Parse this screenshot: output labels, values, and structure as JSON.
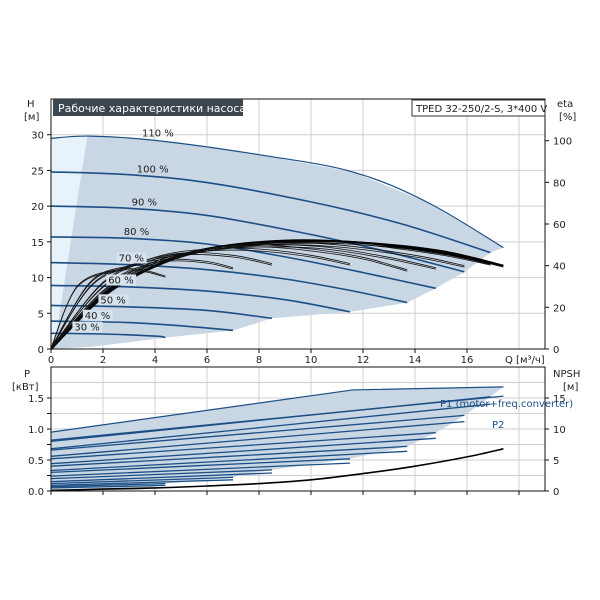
{
  "chart_data": [
    {
      "type": "line",
      "title": "Рабочие характеристики насоса",
      "model": "TPED 32-250/2-S, 3*400 V",
      "ylabel_left": [
        "H",
        "[м]"
      ],
      "ylabel_right": [
        "eta",
        "[%]"
      ],
      "xlabel": "Q [м³/ч]",
      "xlim": [
        0,
        19
      ],
      "ylim_left": [
        0,
        35
      ],
      "ylim_right": [
        0,
        120
      ],
      "x_ticks": [
        "0",
        "2",
        "4",
        "6",
        "8",
        "10",
        "12",
        "14",
        "16"
      ],
      "y_ticks_left": [
        "0",
        "5",
        "10",
        "15",
        "20",
        "25",
        "30"
      ],
      "y_ticks_right": [
        "0",
        "20",
        "40",
        "60",
        "80",
        "100"
      ],
      "head_series": [
        {
          "name": "110 %",
          "q": [
            0,
            1.5,
            4,
            8,
            11.6,
            14.5,
            17.4
          ],
          "h": [
            29.5,
            29.8,
            29.2,
            27.2,
            24.8,
            20.5,
            14.2
          ]
        },
        {
          "name": "100 %",
          "q": [
            0,
            3,
            6,
            10,
            13.5,
            16.9
          ],
          "h": [
            24.8,
            24.4,
            23.3,
            20.6,
            17.5,
            13.5
          ]
        },
        {
          "name": "90 %",
          "q": [
            0,
            3,
            6,
            9.5,
            12.5,
            15.9
          ],
          "h": [
            20,
            19.7,
            18.7,
            16.4,
            14,
            10.8
          ]
        },
        {
          "name": "80 %",
          "q": [
            0,
            3,
            6,
            9,
            12,
            14.8
          ],
          "h": [
            15.7,
            15.5,
            14.7,
            12.9,
            10.7,
            8.5
          ]
        },
        {
          "name": "70 %",
          "q": [
            0,
            3,
            6,
            9,
            11.5,
            13.7
          ],
          "h": [
            12.1,
            11.8,
            11.1,
            9.8,
            8.2,
            6.5
          ]
        },
        {
          "name": "60 %",
          "q": [
            0,
            3,
            6,
            9,
            11.5
          ],
          "h": [
            8.9,
            8.7,
            8.1,
            6.9,
            5.2
          ]
        },
        {
          "name": "50 %",
          "q": [
            0,
            3,
            6,
            8.5
          ],
          "h": [
            6.1,
            5.9,
            5.4,
            4.3
          ]
        },
        {
          "name": "40 %",
          "q": [
            0,
            3,
            5.5,
            7
          ],
          "h": [
            3.9,
            3.7,
            3.1,
            2.6
          ]
        },
        {
          "name": "30 %",
          "q": [
            0,
            2,
            4,
            4.4
          ],
          "h": [
            2.2,
            2.1,
            1.8,
            1.6
          ]
        }
      ],
      "eta_series": [
        {
          "name": "eta 110 %",
          "q": [
            0,
            2,
            4,
            6,
            9,
            12,
            15,
            17.4
          ],
          "eta": [
            0,
            25,
            40,
            48,
            52,
            51,
            47,
            40
          ]
        },
        {
          "name": "eta 100 %",
          "q": [
            0,
            2,
            4,
            6,
            9,
            12,
            15,
            16.9
          ],
          "eta": [
            0,
            26,
            40,
            48,
            51.5,
            51,
            46,
            41
          ]
        },
        {
          "name": "eta 90 %",
          "q": [
            0,
            2,
            4,
            6,
            8.5,
            11,
            14,
            15.9
          ],
          "eta": [
            0,
            27,
            41,
            48,
            51,
            50,
            45,
            40
          ]
        },
        {
          "name": "eta 80 %",
          "q": [
            0,
            2,
            4,
            6,
            8,
            10.5,
            13,
            14.8
          ],
          "eta": [
            0,
            28,
            42,
            48,
            50,
            49,
            44,
            39
          ]
        },
        {
          "name": "eta 70 %",
          "q": [
            0,
            2,
            4,
            6,
            8,
            10,
            12,
            13.7
          ],
          "eta": [
            0,
            30,
            42,
            48,
            50,
            48,
            44,
            38
          ]
        },
        {
          "name": "eta 60 %",
          "q": [
            0,
            2,
            4,
            6,
            8,
            10,
            11.5
          ],
          "eta": [
            0,
            32,
            44,
            48,
            48,
            45,
            41
          ]
        },
        {
          "name": "eta 50 %",
          "q": [
            0,
            1.5,
            3,
            5,
            7,
            8.5
          ],
          "eta": [
            0,
            30,
            40,
            46,
            45,
            41
          ]
        },
        {
          "name": "eta 40 %",
          "q": [
            0,
            1.5,
            3,
            4.5,
            6,
            7
          ],
          "eta": [
            0,
            32,
            40,
            43,
            42,
            39
          ]
        },
        {
          "name": "eta 30 %",
          "q": [
            0,
            1,
            2.5,
            3.5,
            4.4
          ],
          "eta": [
            0,
            30,
            38,
            38,
            35
          ]
        }
      ],
      "percent_labels": [
        "110 %",
        "100 %",
        "90 %",
        "80 %",
        "70 %",
        "60 %",
        "50 %",
        "40 %",
        "30 %"
      ]
    },
    {
      "type": "line",
      "ylabel_left": [
        "P",
        "[кВт]"
      ],
      "ylabel_right": [
        "NPSH",
        "[м]"
      ],
      "xlim": [
        0,
        19
      ],
      "ylim_left": [
        0,
        2.0
      ],
      "ylim_right": [
        0,
        20
      ],
      "y_ticks_left": [
        "0.0",
        "0.5",
        "1.0",
        "1.5"
      ],
      "y_ticks_right": [
        "0",
        "5",
        "10",
        "15"
      ],
      "legend": [
        "P1 (motor+freq.converter)",
        "P2"
      ],
      "p1_series": [
        {
          "name": "P1 110 %",
          "q": [
            0,
            17.4
          ],
          "p": [
            0.95,
            1.68
          ]
        },
        {
          "name": "P1 100 %",
          "q": [
            0,
            16.9
          ],
          "p": [
            0.8,
            1.52
          ]
        },
        {
          "name": "P1 90 %",
          "q": [
            0,
            15.9
          ],
          "p": [
            0.66,
            1.22
          ]
        },
        {
          "name": "P1 80 %",
          "q": [
            0,
            14.8
          ],
          "p": [
            0.52,
            0.94
          ]
        },
        {
          "name": "P1 70 %",
          "q": [
            0,
            13.7
          ],
          "p": [
            0.4,
            0.72
          ]
        },
        {
          "name": "P1 60 %",
          "q": [
            0,
            11.5
          ],
          "p": [
            0.3,
            0.52
          ]
        },
        {
          "name": "P1 50 %",
          "q": [
            0,
            8.5
          ],
          "p": [
            0.2,
            0.34
          ]
        },
        {
          "name": "P1 40 %",
          "q": [
            0,
            7
          ],
          "p": [
            0.12,
            0.22
          ]
        },
        {
          "name": "P1 30 %",
          "q": [
            0,
            4.4
          ],
          "p": [
            0.07,
            0.12
          ]
        }
      ],
      "p2_series": [
        {
          "name": "P2 110 %",
          "q": [
            0,
            17.4
          ],
          "p": [
            0.82,
            1.53
          ]
        },
        {
          "name": "P2 100 %",
          "q": [
            0,
            16.9
          ],
          "p": [
            0.68,
            1.4
          ]
        },
        {
          "name": "P2 90 %",
          "q": [
            0,
            15.9
          ],
          "p": [
            0.56,
            1.12
          ]
        },
        {
          "name": "P2 80 %",
          "q": [
            0,
            14.8
          ],
          "p": [
            0.44,
            0.85
          ]
        },
        {
          "name": "P2 70 %",
          "q": [
            0,
            13.7
          ],
          "p": [
            0.33,
            0.64
          ]
        },
        {
          "name": "P2 60 %",
          "q": [
            0,
            11.5
          ],
          "p": [
            0.24,
            0.45
          ]
        },
        {
          "name": "P2 50 %",
          "q": [
            0,
            8.5
          ],
          "p": [
            0.15,
            0.29
          ]
        },
        {
          "name": "P2 40 %",
          "q": [
            0,
            7
          ],
          "p": [
            0.09,
            0.18
          ]
        },
        {
          "name": "P2 30 %",
          "q": [
            0,
            4.4
          ],
          "p": [
            0.05,
            0.09
          ]
        }
      ],
      "npsh_series": {
        "name": "NPSH",
        "q": [
          0,
          2,
          4,
          6,
          8,
          10,
          12,
          14,
          16,
          17.4
        ],
        "npsh": [
          0.1,
          0.3,
          0.5,
          0.8,
          1.2,
          1.8,
          2.8,
          4.0,
          5.5,
          6.8
        ]
      }
    }
  ],
  "colors": {
    "curve_blue": "#1c4f86",
    "envelope_fill": "#c9d6e3",
    "title_bg": "#3c4650",
    "grid": "#cfcfcf"
  }
}
